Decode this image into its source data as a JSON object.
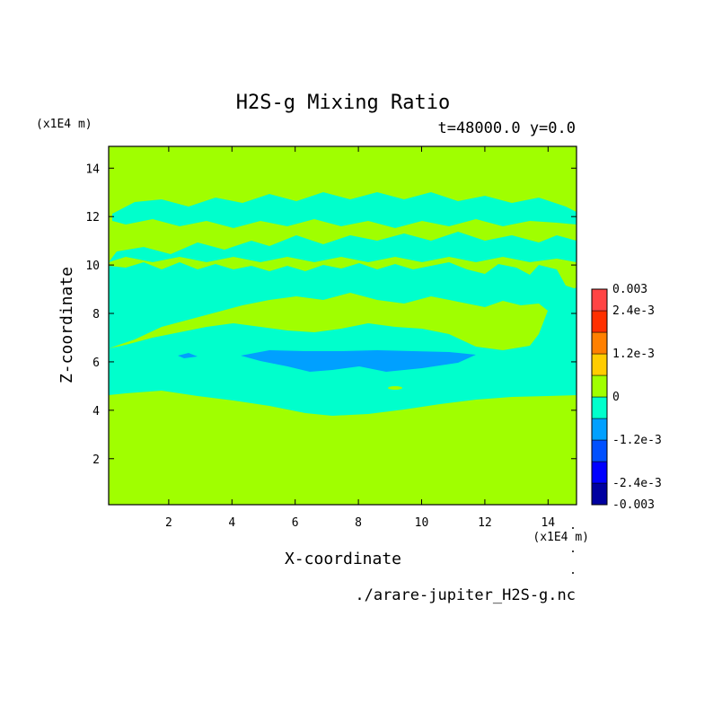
{
  "chart_data": {
    "type": "heatmap",
    "title": "H2S-g Mixing Ratio",
    "subtitle": "t=48000.0 y=0.0",
    "xlabel": "X-coordinate",
    "ylabel": "Z-coordinate",
    "x_unit": "(x1E4 m)",
    "y_unit": "(x1E4 m)",
    "source": "./arare-jupiter_H2S-g.nc",
    "xlim": [
      0.1,
      14.9
    ],
    "ylim": [
      0.1,
      14.9
    ],
    "x_ticks": [
      2,
      4,
      6,
      8,
      10,
      12,
      14
    ],
    "y_ticks": [
      2,
      4,
      6,
      8,
      10,
      12,
      14
    ],
    "x_tick_labels": [
      "2",
      "4",
      "6",
      "8",
      "10",
      "12",
      "14"
    ],
    "y_tick_labels": [
      "2",
      "4",
      "6",
      "8",
      "10",
      "12",
      "14"
    ],
    "colorbar": {
      "levels": [
        -0.003,
        -0.0024,
        -0.0018,
        -0.0012,
        -0.0006,
        0,
        0.0006,
        0.0012,
        0.0018,
        0.0024,
        0.003
      ],
      "colors": [
        "#0000a0",
        "#0000ff",
        "#0050ff",
        "#00a0ff",
        "#00ffcc",
        "#a0ff00",
        "#ffcc00",
        "#ff8000",
        "#ff3000",
        "#ff4444"
      ],
      "labels": [
        "0.003",
        "2.4e-3",
        "1.2e-3",
        "0",
        "-1.2e-3",
        "-2.4e-3",
        "-0.003"
      ]
    },
    "regions": [
      {
        "level": 0,
        "color": "#a0ff00",
        "description": "background mixing ratio ~0"
      },
      {
        "level": -0.0006,
        "color": "#00ffcc",
        "z_range": [
          4.4,
          12.6
        ]
      },
      {
        "level": -0.0012,
        "color": "#00a0ff",
        "x_range": [
          4.3,
          11.6
        ],
        "z_range": [
          5.6,
          6.4
        ]
      }
    ]
  }
}
